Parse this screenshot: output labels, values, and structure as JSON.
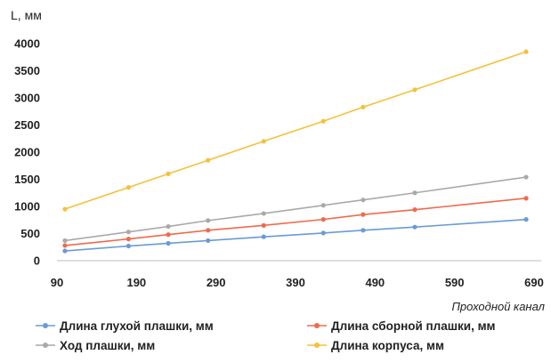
{
  "chart_data": {
    "type": "line",
    "ylabel": "L, мм",
    "xlabel": "Проходной канал",
    "xlim": [
      90,
      690
    ],
    "ylim": [
      0,
      4000
    ],
    "x_ticks": [
      90,
      190,
      290,
      390,
      490,
      590,
      690
    ],
    "y_ticks": [
      0,
      500,
      1000,
      1500,
      2000,
      2500,
      3000,
      3500,
      4000
    ],
    "grid": false,
    "legend_position": "bottom",
    "series": [
      {
        "name": "Длина глухой плашки, мм",
        "color": "#6a9bd4",
        "x": [
          100,
          180,
          230,
          280,
          350,
          425,
          475,
          540,
          680
        ],
        "values": [
          180,
          270,
          320,
          370,
          440,
          510,
          560,
          620,
          760
        ]
      },
      {
        "name": "Длина сборной плашки, мм",
        "color": "#ef6a4c",
        "x": [
          100,
          180,
          230,
          280,
          350,
          425,
          475,
          540,
          680
        ],
        "values": [
          280,
          400,
          480,
          560,
          650,
          760,
          850,
          940,
          1150
        ]
      },
      {
        "name": "Ход плашки, мм",
        "color": "#a9a9a9",
        "x": [
          100,
          180,
          230,
          280,
          350,
          425,
          475,
          540,
          680
        ],
        "values": [
          370,
          530,
          630,
          740,
          870,
          1020,
          1120,
          1250,
          1540
        ]
      },
      {
        "name": "Длина корпуса, мм",
        "color": "#f4c13b",
        "x": [
          100,
          180,
          230,
          280,
          350,
          425,
          475,
          540,
          680
        ],
        "values": [
          950,
          1350,
          1600,
          1850,
          2200,
          2570,
          2830,
          3150,
          3850
        ]
      }
    ]
  }
}
